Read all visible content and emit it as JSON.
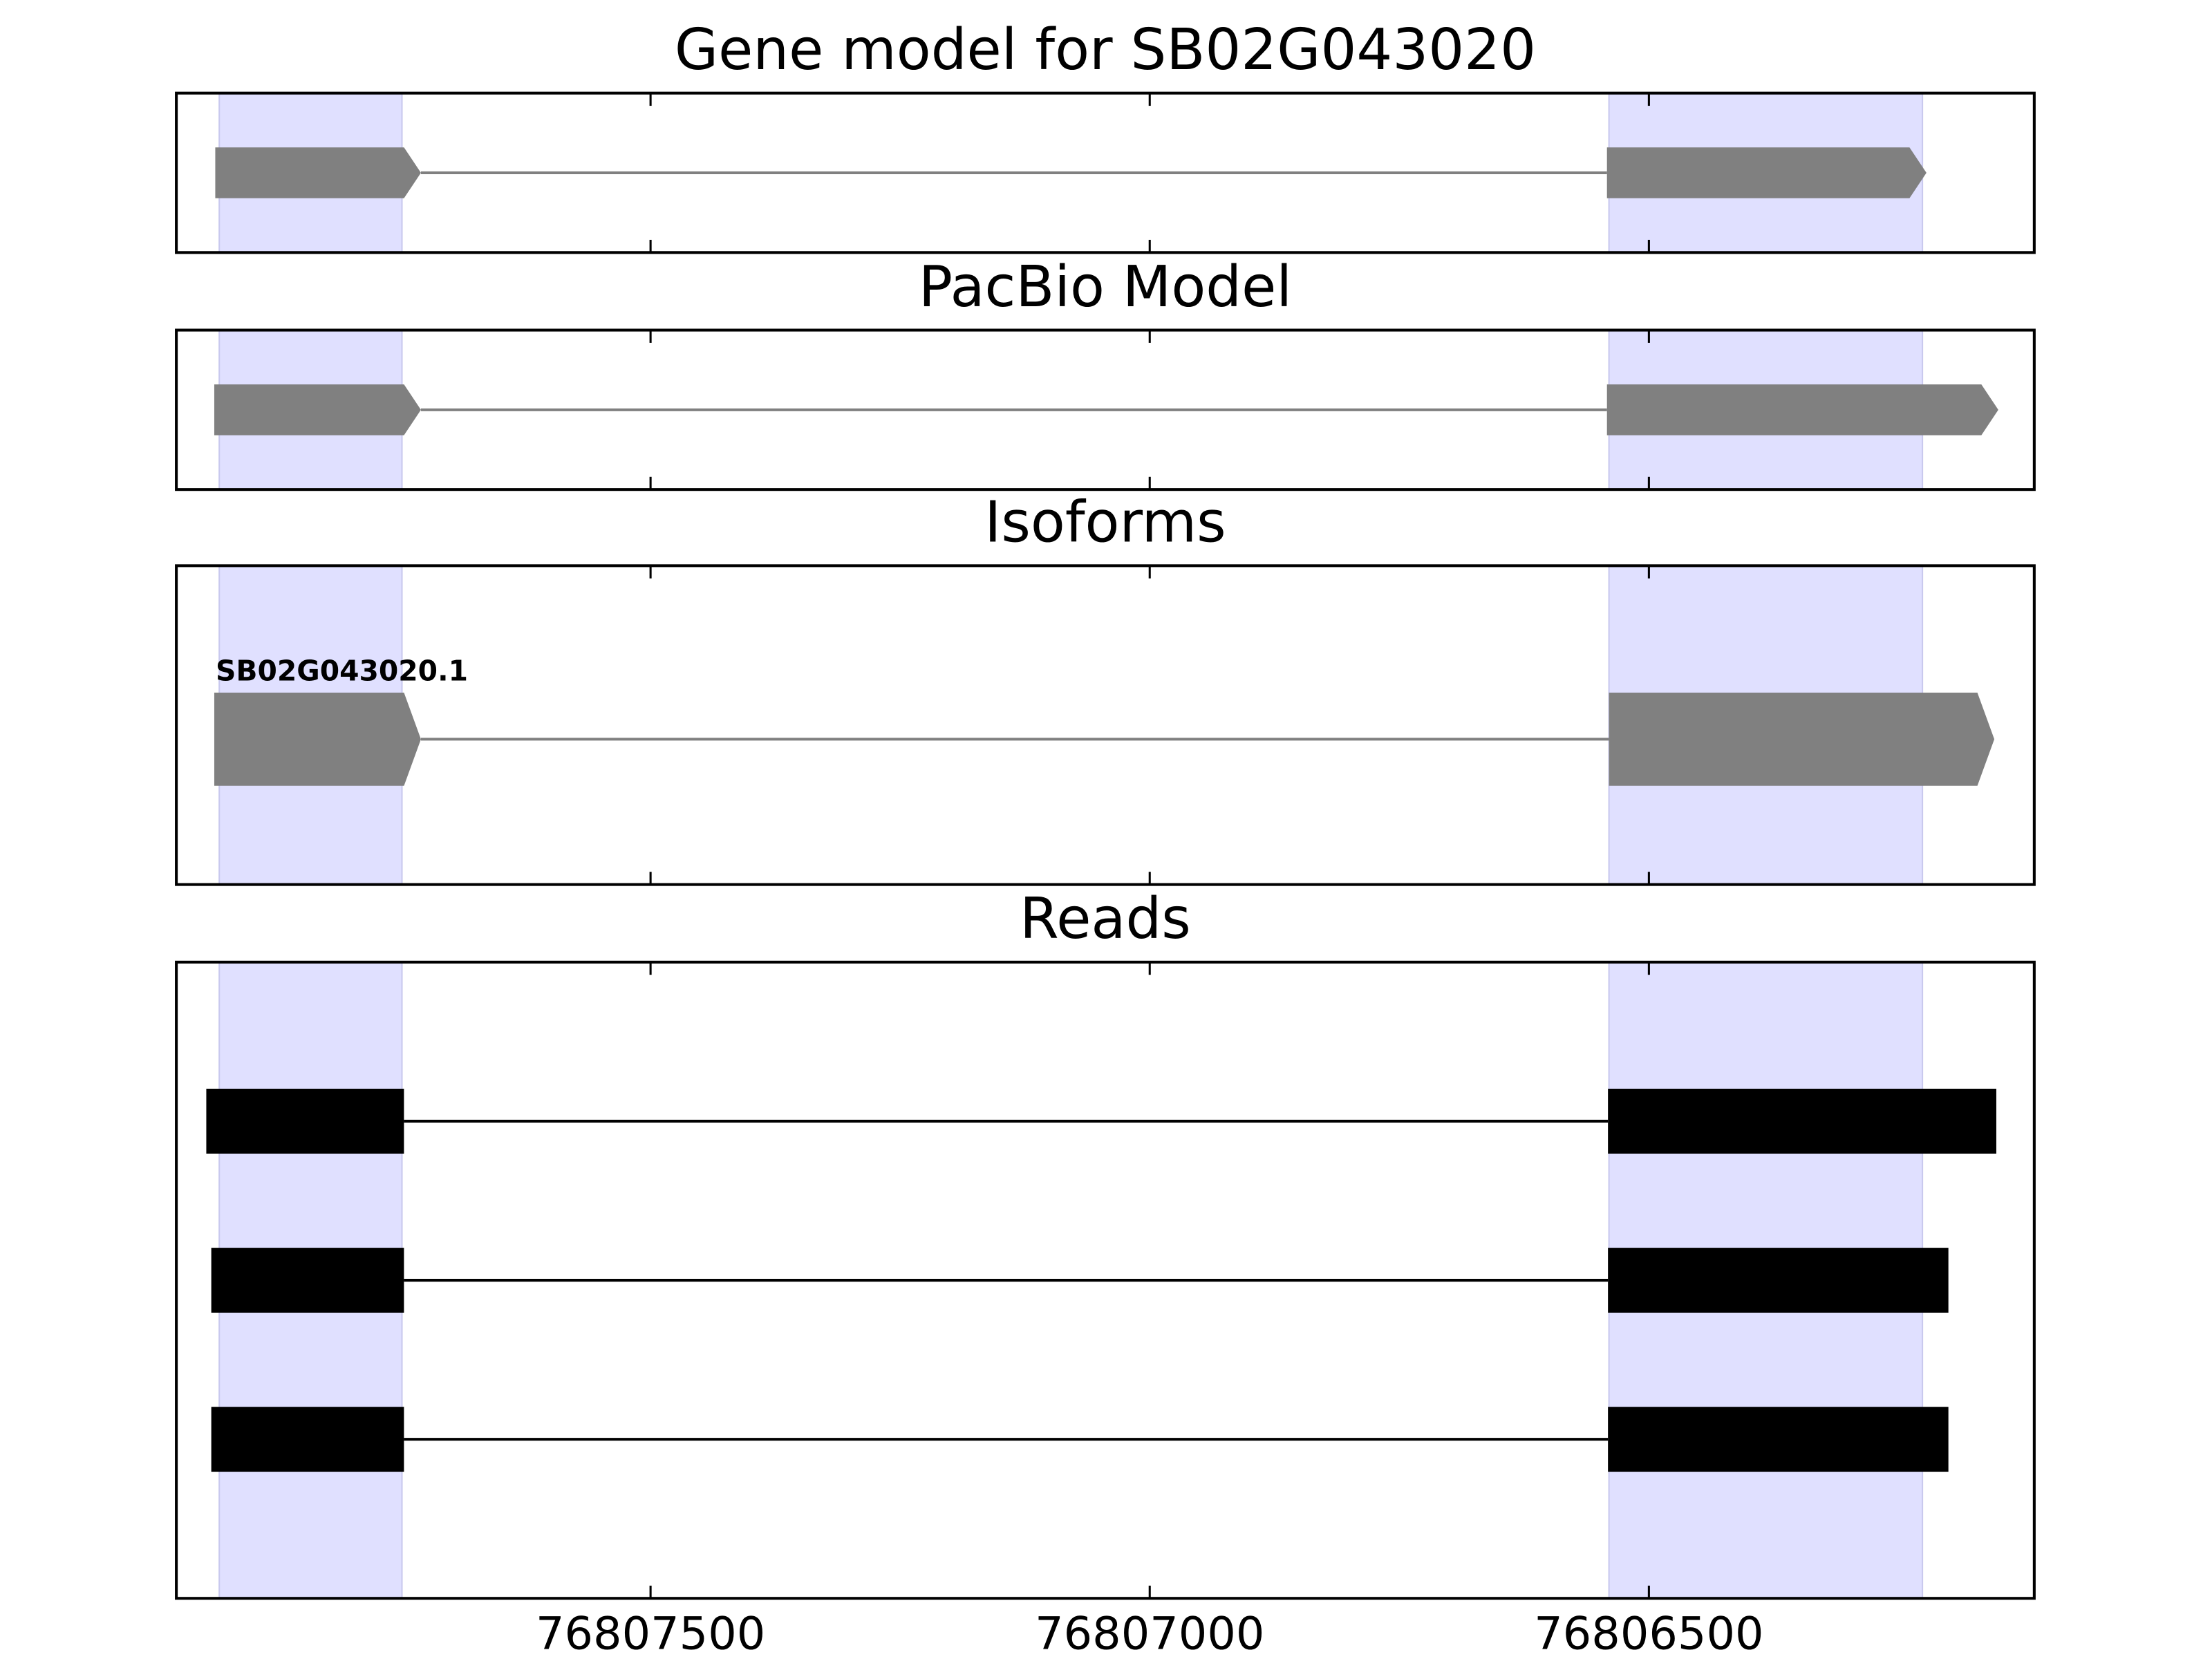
{
  "chart_data": [
    {
      "type": "gene-model",
      "title": "Gene model for SB02G043020",
      "shape": "arrow",
      "color": "#808080",
      "xlim": [
        76807975,
        76806114
      ],
      "xticks": [
        76807500,
        76807000,
        76806500
      ],
      "highlight_color": "#e0e0ff",
      "highlights": [
        [
          76807932,
          76807749
        ],
        [
          76806540,
          76806226
        ]
      ],
      "features": [
        {
          "exons": [
            [
              76807936,
              76807730
            ],
            [
              76806542,
              76806222
            ]
          ]
        }
      ]
    },
    {
      "type": "gene-model",
      "title": "PacBio Model",
      "shape": "arrow",
      "color": "#808080",
      "xlim": [
        76807975,
        76806114
      ],
      "xticks": [
        76807500,
        76807000,
        76806500
      ],
      "highlight_color": "#e0e0ff",
      "highlights": [
        [
          76807932,
          76807749
        ],
        [
          76806540,
          76806226
        ]
      ],
      "features": [
        {
          "exons": [
            [
              76807937,
              76807730
            ],
            [
              76806542,
              76806150
            ]
          ]
        }
      ]
    },
    {
      "type": "gene-model",
      "title": "Isoforms",
      "shape": "arrow",
      "color": "#808080",
      "xlim": [
        76807975,
        76806114
      ],
      "xticks": [
        76807500,
        76807000,
        76806500
      ],
      "highlight_color": "#e0e0ff",
      "highlights": [
        [
          76807932,
          76807749
        ],
        [
          76806540,
          76806226
        ]
      ],
      "features": [
        {
          "name": "SB02G043020.1",
          "exons": [
            [
              76807937,
              76807730
            ],
            [
              76806540,
              76806154
            ]
          ]
        }
      ]
    },
    {
      "type": "gene-model",
      "title": "Reads",
      "shape": "box",
      "color": "#000000",
      "xlim": [
        76807975,
        76806114
      ],
      "xticks": [
        76807500,
        76807000,
        76806500
      ],
      "tick_labels": true,
      "highlight_color": "#e0e0ff",
      "highlights": [
        [
          76807932,
          76807749
        ],
        [
          76806540,
          76806226
        ]
      ],
      "features": [
        {
          "exons": [
            [
              76807945,
              76807747
            ],
            [
              76806541,
              76806152
            ]
          ]
        },
        {
          "exons": [
            [
              76807940,
              76807747
            ],
            [
              76806541,
              76806200
            ]
          ]
        },
        {
          "exons": [
            [
              76807940,
              76807747
            ],
            [
              76806541,
              76806200
            ]
          ]
        }
      ]
    }
  ]
}
